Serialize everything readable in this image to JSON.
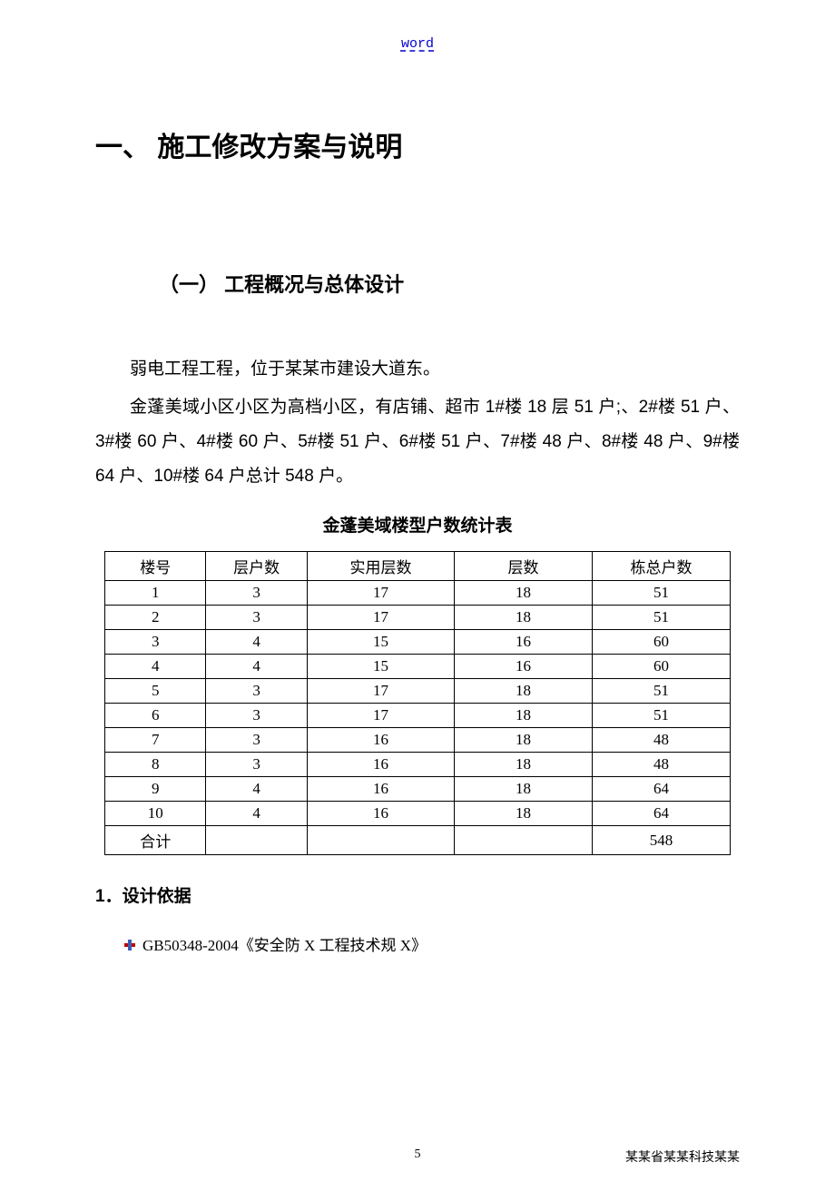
{
  "header": {
    "word": "word"
  },
  "heading1": "一、  施工修改方案与说明",
  "heading2": "（一） 工程概况与总体设计",
  "para1": "弱电工程工程，位于某某市建设大道东。",
  "para2": "金蓬美域小区小区为高档小区，有店铺、超市 1#楼 18 层 51 户;、2#楼 51 户、3#楼 60 户、4#楼 60 户、5#楼 51 户、6#楼 51 户、7#楼 48 户、8#楼 48 户、9#楼 64 户、10#楼 64 户总计 548 户。",
  "table": {
    "title": "金蓬美域楼型户数统计表",
    "columns": [
      "楼号",
      "层户数",
      "实用层数",
      "层数",
      "栋总户数"
    ],
    "rows": [
      [
        "1",
        "3",
        "17",
        "18",
        "51"
      ],
      [
        "2",
        "3",
        "17",
        "18",
        "51"
      ],
      [
        "3",
        "4",
        "15",
        "16",
        "60"
      ],
      [
        "4",
        "4",
        "15",
        "16",
        "60"
      ],
      [
        "5",
        "3",
        "17",
        "18",
        "51"
      ],
      [
        "6",
        "3",
        "17",
        "18",
        "51"
      ],
      [
        "7",
        "3",
        "16",
        "18",
        "48"
      ],
      [
        "8",
        "3",
        "16",
        "18",
        "48"
      ],
      [
        "9",
        "4",
        "16",
        "18",
        "64"
      ],
      [
        "10",
        "4",
        "16",
        "18",
        "64"
      ],
      [
        "合计",
        "",
        "",
        "",
        "548"
      ]
    ],
    "border_color": "#000000",
    "font_size": 17
  },
  "heading3": "1．设计依据",
  "bullet1": "GB50348-2004《安全防 X 工程技术规 X》",
  "footer": {
    "page": "5",
    "right": "某某省某某科技某某"
  },
  "colors": {
    "link": "#0000cc",
    "text": "#000000",
    "bullet_red": "#c00000",
    "bullet_blue": "#3a5fb5",
    "background": "#ffffff"
  },
  "typography": {
    "body_font": "Microsoft YaHei / SimSun",
    "heading_font": "SimHei",
    "h1_size_pt": 22,
    "h2_size_pt": 16,
    "body_size_pt": 14,
    "table_size_pt": 12
  }
}
